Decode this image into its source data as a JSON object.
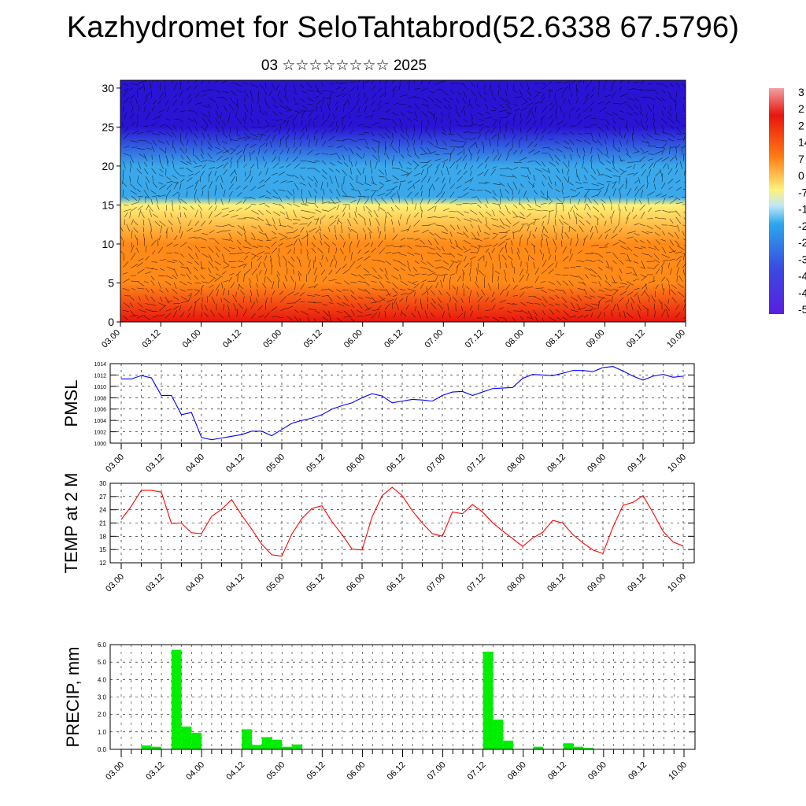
{
  "title": "Kazhydromet for SeloTahtabrod(52.6338 67.5796)",
  "subtitle": "03 ☆☆☆☆☆☆☆☆ 2025",
  "time_ticks": [
    "03.00",
    "03.12",
    "04.00",
    "04.12",
    "05.00",
    "05.12",
    "06.00",
    "06.12",
    "07.00",
    "07.12",
    "08.00",
    "08.12",
    "09.00",
    "09.12",
    "10.00"
  ],
  "chart_data": [
    {
      "type": "heatmap",
      "panel": "cross-section",
      "ylim": [
        0,
        31
      ],
      "y_ticks": [
        "0",
        "5",
        "10",
        "15",
        "20",
        "25",
        "30"
      ],
      "colorbar_labels": [
        "3",
        "2",
        "2",
        "14",
        "7",
        "0",
        "-7",
        "-1",
        "-2",
        "-2",
        "-3",
        "-4",
        "-4",
        "-5"
      ],
      "colors": {
        "cold": "#2a14d4",
        "cool": "#3aa8ea",
        "mild": "#fff27a",
        "warm": "#ff8a18",
        "hot": "#e8140e",
        "vectors": "#000000"
      },
      "height_bands_temp_c": [
        {
          "y": 0,
          "temp": 30
        },
        {
          "y": 5,
          "temp": 21
        },
        {
          "y": 10,
          "temp": 12
        },
        {
          "y": 15,
          "temp": 0
        },
        {
          "y": 16,
          "temp": -7
        },
        {
          "y": 20,
          "temp": -25
        },
        {
          "y": 25,
          "temp": -45
        },
        {
          "y": 31,
          "temp": -55
        }
      ]
    },
    {
      "type": "line",
      "panel": "pmsl",
      "ylabel": "PMSL",
      "ylim": [
        1000,
        1014
      ],
      "y_ticks": [
        "1000",
        "1002",
        "1004",
        "1006",
        "1008",
        "1010",
        "1012",
        "1014"
      ],
      "color": "#0000ff",
      "x_hours": [
        0,
        3,
        6,
        9,
        12,
        15,
        18,
        21,
        24,
        27,
        30,
        33,
        36,
        39,
        42,
        45,
        48,
        51,
        54,
        57,
        60,
        63,
        66,
        69,
        72,
        75,
        78,
        81,
        84,
        87,
        90,
        93,
        96,
        99,
        102,
        105,
        108,
        111,
        114,
        117,
        120,
        123,
        126,
        129,
        132,
        135,
        138,
        141,
        144,
        147,
        150,
        153,
        156,
        159,
        162,
        165,
        168
      ],
      "values": [
        1011.3,
        1011.3,
        1011.9,
        1011.5,
        1008.4,
        1008.4,
        1005.0,
        1005.4,
        1001.0,
        1000.6,
        1000.9,
        1001.2,
        1001.5,
        1002.1,
        1002.1,
        1001.3,
        1002.4,
        1003.5,
        1004.0,
        1004.4,
        1005.0,
        1006.0,
        1006.6,
        1007.1,
        1008.0,
        1008.7,
        1008.3,
        1007.1,
        1007.4,
        1007.7,
        1007.6,
        1007.4,
        1008.4,
        1009.0,
        1009.1,
        1008.4,
        1009.0,
        1009.6,
        1009.7,
        1009.8,
        1011.4,
        1012.1,
        1012.0,
        1011.9,
        1012.3,
        1012.8,
        1012.8,
        1012.6,
        1013.3,
        1013.5,
        1012.7,
        1011.8,
        1011.1,
        1011.8,
        1012.1,
        1011.6,
        1011.8
      ]
    },
    {
      "type": "line",
      "panel": "temp2m",
      "ylabel": "TEMP at 2 M",
      "ylim": [
        12,
        30
      ],
      "y_ticks": [
        "12",
        "15",
        "18",
        "21",
        "24",
        "27",
        "30"
      ],
      "color": "#ff0000",
      "x_hours": [
        0,
        3,
        6,
        9,
        12,
        15,
        18,
        21,
        24,
        27,
        30,
        33,
        36,
        39,
        42,
        45,
        48,
        51,
        54,
        57,
        60,
        63,
        66,
        69,
        72,
        75,
        78,
        81,
        84,
        87,
        90,
        93,
        96,
        99,
        102,
        105,
        108,
        111,
        114,
        117,
        120,
        123,
        126,
        129,
        132,
        135,
        138,
        141,
        144,
        147,
        150,
        153,
        156,
        159,
        162,
        165,
        168
      ],
      "values": [
        21.8,
        24.8,
        28.4,
        28.4,
        28.0,
        20.9,
        21.0,
        18.8,
        18.6,
        22.5,
        24.1,
        26.3,
        22.8,
        19.6,
        16.2,
        13.8,
        13.5,
        18.5,
        22.0,
        24.3,
        24.9,
        21.3,
        18.4,
        15.1,
        14.9,
        22.4,
        27.2,
        29.1,
        27.2,
        23.8,
        21.0,
        18.6,
        18.0,
        23.5,
        23.1,
        25.2,
        23.5,
        21.1,
        19.2,
        17.5,
        15.7,
        17.6,
        18.9,
        21.6,
        21.0,
        18.4,
        16.5,
        14.9,
        14.1,
        20.1,
        25.0,
        25.7,
        27.2,
        23.3,
        19.1,
        16.7,
        15.8
      ]
    },
    {
      "type": "bar",
      "panel": "precip",
      "ylabel": "PRECIP, mm",
      "ylim": [
        0,
        6
      ],
      "y_ticks": [
        "0.0",
        "1.0",
        "2.0",
        "3.0",
        "4.0",
        "5.0",
        "6.0"
      ],
      "color": "#00ee00",
      "bar_width_hours": 3,
      "x_hours": [
        6,
        9,
        15,
        18,
        21,
        36,
        39,
        42,
        45,
        48,
        51,
        108,
        111,
        114,
        123,
        132,
        135,
        138
      ],
      "values": [
        0.22,
        0.15,
        5.7,
        1.3,
        0.95,
        1.15,
        0.25,
        0.7,
        0.55,
        0.15,
        0.28,
        5.6,
        1.7,
        0.5,
        0.15,
        0.35,
        0.15,
        0.08
      ]
    }
  ]
}
